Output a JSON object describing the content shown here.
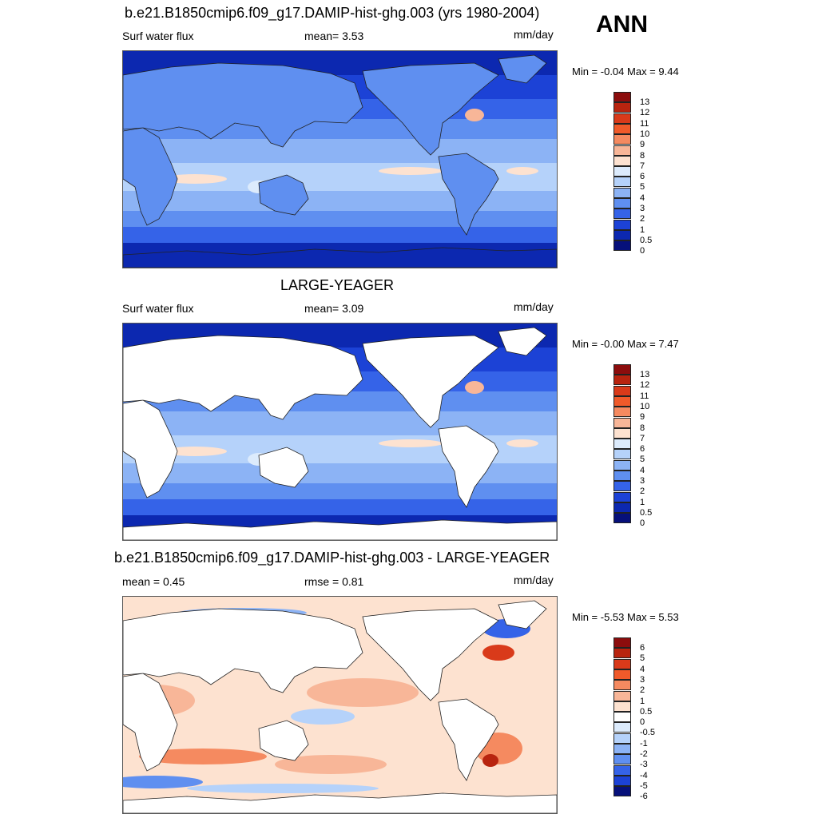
{
  "season": "ANN",
  "panels": [
    {
      "title": "b.e21.B1850cmip6.f09_g17.DAMIP-hist-ghg.003 (yrs 1980-2004)",
      "left_label": "Surf water flux",
      "center_label": "mean=   3.53",
      "units": "mm/day",
      "minmax": "Min =  -0.04 Max =    9.44",
      "fill": "full",
      "colorbar": [
        "13",
        "12",
        "11",
        "10",
        "9",
        "8",
        "7",
        "6",
        "5",
        "4",
        "3",
        "2",
        "1",
        "0.5",
        "0"
      ]
    },
    {
      "title": "LARGE-YEAGER",
      "left_label": "Surf water flux",
      "center_label": "mean=   3.09",
      "units": "mm/day",
      "minmax": "Min =  -0.00 Max =    7.47",
      "fill": "ocean",
      "colorbar": [
        "13",
        "12",
        "11",
        "10",
        "9",
        "8",
        "7",
        "6",
        "5",
        "4",
        "3",
        "2",
        "1",
        "0.5",
        "0"
      ]
    },
    {
      "title": "b.e21.B1850cmip6.f09_g17.DAMIP-hist-ghg.003 - LARGE-YEAGER",
      "left_label": "mean =   0.45",
      "center_label": "rmse =   0.81",
      "units": "mm/day",
      "minmax": "Min =  -5.53 Max =    5.53",
      "fill": "diff",
      "colorbar": [
        "6",
        "5",
        "4",
        "3",
        "2",
        "1",
        "0.5",
        "0",
        "-0.5",
        "-1",
        "-2",
        "-3",
        "-4",
        "-5",
        "-6"
      ]
    }
  ],
  "colors": {
    "abs_scale": [
      "#8c0d0d",
      "#b8240f",
      "#d93a1a",
      "#f05a2a",
      "#f58a60",
      "#f8b698",
      "#fde2d0",
      "#dcebfc",
      "#b5d2fa",
      "#8cb3f5",
      "#5f8ff0",
      "#3563e8",
      "#1c42d6",
      "#0c28b0",
      "#06107a"
    ],
    "diff_scale": [
      "#8c0d0d",
      "#b8240f",
      "#d93a1a",
      "#f05a2a",
      "#f58a60",
      "#f8b698",
      "#fde2d0",
      "#ffffff",
      "#dcebfc",
      "#b5d2fa",
      "#8cb3f5",
      "#5f8ff0",
      "#3563e8",
      "#1c42d6",
      "#06107a"
    ]
  }
}
